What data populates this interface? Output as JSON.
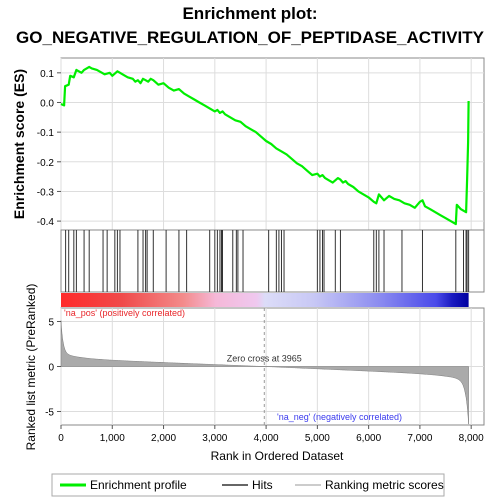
{
  "chart_data": {
    "type": "line",
    "title_line1": "Enrichment plot:",
    "title_line2": "GO_NEGATIVE_REGULATION_OF_PEPTIDASE_ACTIVITY",
    "top_panel": {
      "ylabel": "Enrichment score (ES)",
      "ylim": [
        -0.43,
        0.15
      ],
      "yticks": [
        0.1,
        0.0,
        -0.1,
        -0.2,
        -0.3,
        -0.4
      ],
      "ytick_labels": [
        "0.1",
        "0.0",
        "-0.1",
        "-0.2",
        "-0.3",
        "-0.4"
      ],
      "series": [
        {
          "name": "Enrichment profile",
          "color": "#00ee00",
          "x": [
            0,
            60,
            80,
            150,
            180,
            250,
            300,
            400,
            450,
            550,
            600,
            700,
            800,
            850,
            950,
            1000,
            1100,
            1150,
            1200,
            1300,
            1400,
            1450,
            1500,
            1550,
            1600,
            1650,
            1700,
            1750,
            1800,
            1900,
            2000,
            2100,
            2200,
            2300,
            2400,
            2500,
            2600,
            2700,
            2800,
            2900,
            3000,
            3050,
            3100,
            3150,
            3200,
            3300,
            3400,
            3500,
            3600,
            3700,
            3800,
            3900,
            4000,
            4100,
            4200,
            4300,
            4400,
            4500,
            4600,
            4700,
            4800,
            4900,
            5000,
            5050,
            5100,
            5150,
            5200,
            5300,
            5400,
            5450,
            5500,
            5550,
            5600,
            5700,
            5800,
            5900,
            6000,
            6100,
            6150,
            6200,
            6250,
            6300,
            6400,
            6500,
            6600,
            6700,
            6800,
            6900,
            7000,
            7050,
            7100,
            7200,
            7300,
            7400,
            7500,
            7600,
            7700,
            7720,
            7800,
            7900,
            7920,
            7940,
            7950
          ],
          "y": [
            -0.005,
            -0.01,
            0.055,
            0.06,
            0.09,
            0.085,
            0.11,
            0.1,
            0.11,
            0.12,
            0.115,
            0.11,
            0.1,
            0.095,
            0.1,
            0.09,
            0.105,
            0.1,
            0.095,
            0.085,
            0.08,
            0.07,
            0.075,
            0.065,
            0.08,
            0.075,
            0.07,
            0.08,
            0.075,
            0.06,
            0.065,
            0.05,
            0.04,
            0.045,
            0.03,
            0.02,
            0.01,
            0.0,
            -0.01,
            -0.02,
            -0.03,
            -0.025,
            -0.035,
            -0.03,
            -0.04,
            -0.05,
            -0.06,
            -0.065,
            -0.08,
            -0.09,
            -0.1,
            -0.115,
            -0.13,
            -0.14,
            -0.155,
            -0.165,
            -0.175,
            -0.19,
            -0.205,
            -0.215,
            -0.23,
            -0.245,
            -0.24,
            -0.25,
            -0.245,
            -0.255,
            -0.26,
            -0.27,
            -0.255,
            -0.26,
            -0.27,
            -0.265,
            -0.275,
            -0.285,
            -0.3,
            -0.31,
            -0.32,
            -0.335,
            -0.34,
            -0.31,
            -0.32,
            -0.33,
            -0.315,
            -0.325,
            -0.33,
            -0.34,
            -0.345,
            -0.355,
            -0.335,
            -0.33,
            -0.35,
            -0.36,
            -0.37,
            -0.38,
            -0.39,
            -0.4,
            -0.41,
            -0.345,
            -0.36,
            -0.37,
            -0.26,
            -0.135,
            0.005
          ]
        }
      ]
    },
    "hits": [
      90,
      150,
      250,
      300,
      450,
      550,
      820,
      900,
      1050,
      1100,
      1150,
      1500,
      1600,
      1650,
      1680,
      1800,
      2050,
      2300,
      2450,
      2900,
      3000,
      3050,
      3100,
      3130,
      3150,
      3350,
      3420,
      3450,
      3550,
      4050,
      4200,
      4250,
      4300,
      4350,
      5000,
      5050,
      5100,
      5130,
      5350,
      5450,
      6100,
      6150,
      6200,
      6300,
      6650,
      7050,
      7700,
      7850,
      7900,
      7920,
      7950
    ],
    "color_bar": {
      "left_label": "'na_pos' (positively correlated)",
      "right_label": "'na_neg' (negatively correlated)",
      "left_color": "#e8262a",
      "right_color": "#3a3aee"
    },
    "bottom_panel": {
      "ylabel": "Ranked list metric (PreRanked)",
      "ylim": [
        -6.5,
        6.5
      ],
      "yticks": [
        5,
        0,
        -5
      ],
      "ytick_labels": [
        "5",
        "0",
        "-5"
      ],
      "zero_cross_label": "Zero cross at 3965",
      "zero_cross": 3965
    },
    "xlabel": "Rank in Ordered Dataset",
    "xlim": [
      0,
      8250
    ],
    "xticks": [
      0,
      1000,
      2000,
      3000,
      4000,
      5000,
      6000,
      7000,
      8000
    ],
    "xtick_labels": [
      "0",
      "1,000",
      "2,000",
      "3,000",
      "4,000",
      "5,000",
      "6,000",
      "7,000",
      "8,000"
    ],
    "n_genes": 7950,
    "legend": [
      "Enrichment profile",
      "Hits",
      "Ranking metric scores"
    ],
    "legend_colors": [
      "#00ee00",
      "#666666",
      "#cccccc"
    ]
  }
}
